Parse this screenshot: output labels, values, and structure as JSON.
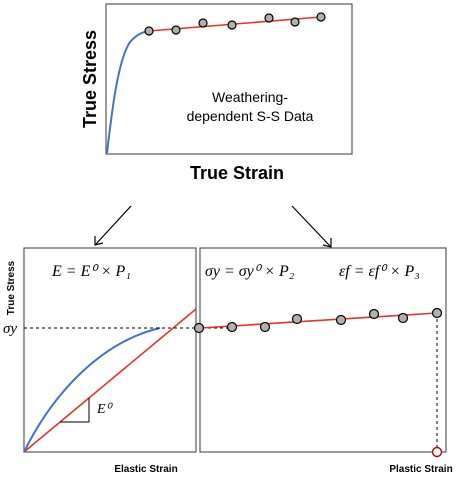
{
  "top_panel": {
    "y_label": "True Stress",
    "x_label": "True Strain",
    "caption_line1": "Weathering-",
    "caption_line2": "dependent S-S Data"
  },
  "bottom_left_panel": {
    "y_label": "True Stress",
    "x_label": "Elastic Strain",
    "equation": "E = E⁰ × P₁",
    "slope_label": "E⁰",
    "yield_label": "σy"
  },
  "bottom_right_panel": {
    "x_label": "Plastic Strain",
    "equation_left": "σy = σy⁰ × P₂",
    "equation_right": "εf = εf⁰ × P₃"
  },
  "colors": {
    "curve_blue": "#4472c4",
    "line_red": "#e8312a",
    "marker_fill": "#b0b0b0",
    "failure_marker": "#c00000",
    "frame": "#595959"
  }
}
